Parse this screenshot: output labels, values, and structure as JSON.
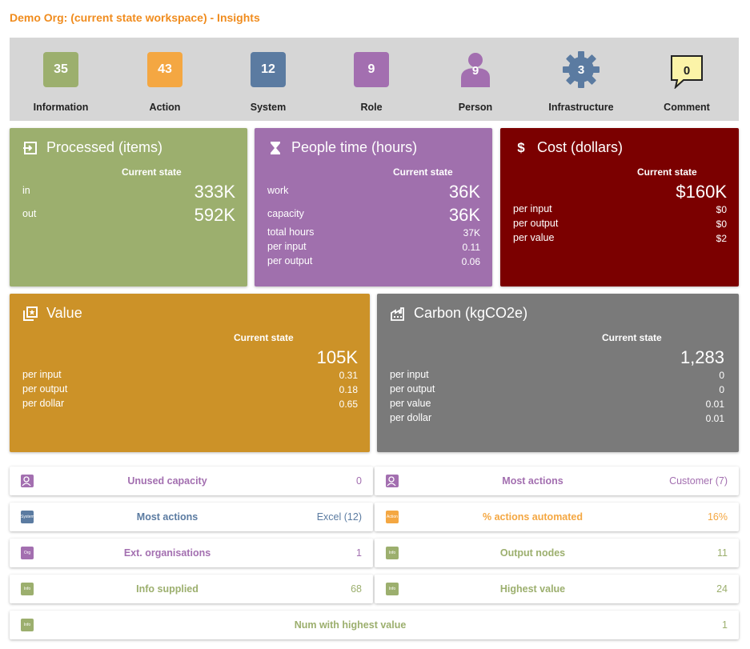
{
  "page": {
    "title": "Demo Org: (current state workspace) - Insights"
  },
  "summary": [
    {
      "count": "35",
      "label": "Information",
      "color": "#9caf6e",
      "shape": "square"
    },
    {
      "count": "43",
      "label": "Action",
      "color": "#f4a742",
      "shape": "square"
    },
    {
      "count": "12",
      "label": "System",
      "color": "#5b7ba1",
      "shape": "square"
    },
    {
      "count": "9",
      "label": "Role",
      "color": "#a36fb0",
      "shape": "square"
    },
    {
      "count": "9",
      "label": "Person",
      "color": "#a36fb0",
      "shape": "person"
    },
    {
      "count": "3",
      "label": "Infrastructure",
      "color": "#5b7ba1",
      "shape": "gear"
    },
    {
      "count": "0",
      "label": "Comment",
      "color": "#fbf3a8",
      "shape": "comment"
    }
  ],
  "cards": {
    "processed": {
      "title": "Processed (items)",
      "icon": "processed-icon",
      "color": "#9caf6e",
      "col": "Current state",
      "rows": [
        {
          "label": "in",
          "value": "333K"
        },
        {
          "label": "out",
          "value": "592K"
        }
      ]
    },
    "people": {
      "title": "People time (hours)",
      "icon": "hourglass-icon",
      "color": "#a070ad",
      "col": "Current state",
      "big_rows": [
        {
          "label": "work",
          "value": "36K"
        },
        {
          "label": "capacity",
          "value": "36K"
        }
      ],
      "rows": [
        {
          "label": "total hours",
          "value": "37K"
        },
        {
          "label": "per input",
          "value": "0.11"
        },
        {
          "label": "per output",
          "value": "0.06"
        }
      ]
    },
    "cost": {
      "title": "Cost (dollars)",
      "icon": "dollar-icon",
      "color": "#7b0000",
      "col": "Current state",
      "big": "$160K",
      "rows": [
        {
          "label": "per input",
          "value": "$0"
        },
        {
          "label": "per output",
          "value": "$0"
        },
        {
          "label": "per value",
          "value": "$2"
        }
      ]
    },
    "value": {
      "title": "Value",
      "icon": "value-icon",
      "color": "#cc9228",
      "col": "Current state",
      "big": "105K",
      "rows": [
        {
          "label": "per input",
          "value": "0.31"
        },
        {
          "label": "per output",
          "value": "0.18"
        },
        {
          "label": "per dollar",
          "value": "0.65"
        }
      ]
    },
    "carbon": {
      "title": "Carbon (kgCO2e)",
      "icon": "factory-icon",
      "color": "#7a7a7a",
      "col": "Current state",
      "big": "1,283",
      "rows": [
        {
          "label": "per input",
          "value": "0"
        },
        {
          "label": "per output",
          "value": "0"
        },
        {
          "label": "per value",
          "value": "0.01"
        },
        {
          "label": "per dollar",
          "value": "0.01"
        }
      ]
    }
  },
  "list": [
    {
      "icon_text": "",
      "icon_color": "#a36fb0",
      "label": "Unused capacity",
      "value": "0",
      "color": "#a36fb0"
    },
    {
      "icon_text": "",
      "icon_color": "#a36fb0",
      "label": "Most actions",
      "value": "Customer (7)",
      "color": "#a36fb0"
    },
    {
      "icon_text": "System",
      "icon_color": "#5b7ba1",
      "label": "Most actions",
      "value": "Excel (12)",
      "color": "#5b7ba1"
    },
    {
      "icon_text": "Action",
      "icon_color": "#f4a742",
      "label": "% actions automated",
      "value": "16%",
      "color": "#f4a742"
    },
    {
      "icon_text": "Org",
      "icon_color": "#a36fb0",
      "label": "Ext. organisations",
      "value": "1",
      "color": "#a36fb0"
    },
    {
      "icon_text": "Info",
      "icon_color": "#9caf6e",
      "label": "Output nodes",
      "value": "11",
      "color": "#9caf6e"
    },
    {
      "icon_text": "Info",
      "icon_color": "#9caf6e",
      "label": "Info supplied",
      "value": "68",
      "color": "#9caf6e"
    },
    {
      "icon_text": "Info",
      "icon_color": "#9caf6e",
      "label": "Highest value",
      "value": "24",
      "color": "#9caf6e"
    },
    {
      "icon_text": "Info",
      "icon_color": "#9caf6e",
      "label": "Num with highest value",
      "value": "1",
      "color": "#9caf6e"
    }
  ]
}
